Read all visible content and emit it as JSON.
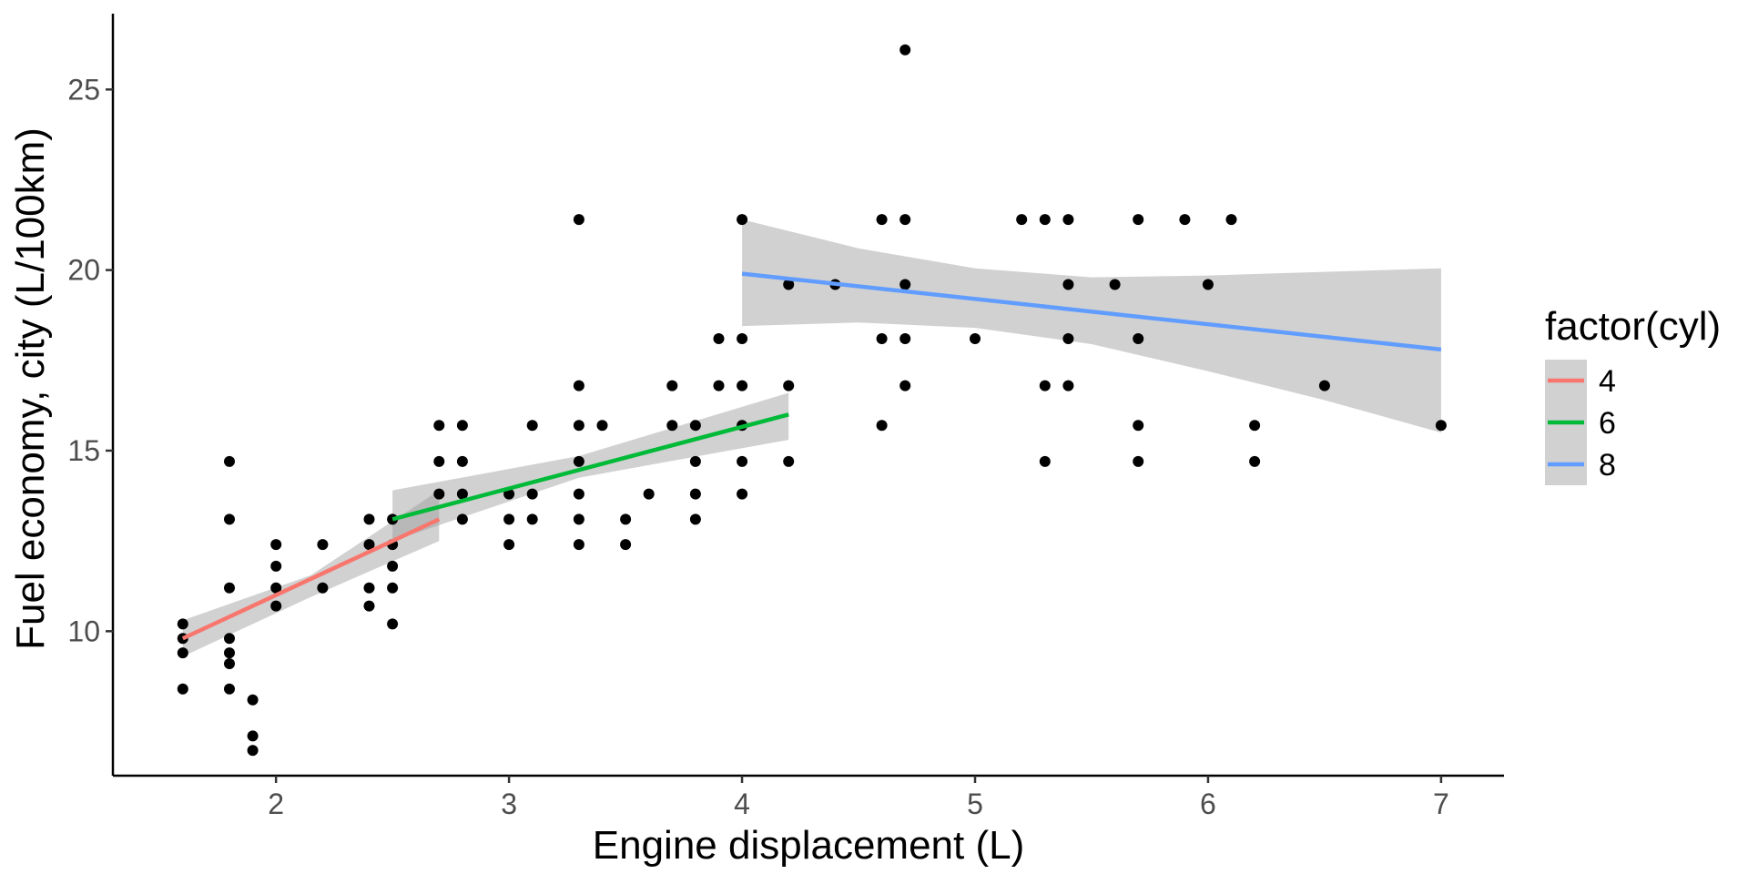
{
  "chart_data": {
    "type": "scatter",
    "xlabel": "Engine displacement (L)",
    "ylabel": "Fuel economy, city (L/100km)",
    "xlim": [
      1.3,
      7.27
    ],
    "ylim": [
      6.0,
      27.1
    ],
    "x_ticks": [
      2,
      3,
      4,
      5,
      6,
      7
    ],
    "y_ticks": [
      10,
      15,
      20,
      25
    ],
    "x_tick_labels": [
      "2",
      "3",
      "4",
      "5",
      "6",
      "7"
    ],
    "y_tick_labels": [
      "10",
      "15",
      "20",
      "25"
    ],
    "grid": false,
    "legend": {
      "title": "factor(cyl)",
      "placement": "right",
      "entries": [
        {
          "label": "4",
          "color": "#F8766D"
        },
        {
          "label": "6",
          "color": "#00BA38"
        },
        {
          "label": "8",
          "color": "#619CFF"
        }
      ]
    },
    "points": [
      [
        1.6,
        10.2
      ],
      [
        1.6,
        9.8
      ],
      [
        1.6,
        9.4
      ],
      [
        1.6,
        8.4
      ],
      [
        1.8,
        14.7
      ],
      [
        1.8,
        13.1
      ],
      [
        1.8,
        11.2
      ],
      [
        1.8,
        9.8
      ],
      [
        1.8,
        9.4
      ],
      [
        1.8,
        9.1
      ],
      [
        1.8,
        8.4
      ],
      [
        1.9,
        8.1
      ],
      [
        1.9,
        7.1
      ],
      [
        1.9,
        6.7
      ],
      [
        2.0,
        12.4
      ],
      [
        2.0,
        11.8
      ],
      [
        2.0,
        11.2
      ],
      [
        2.0,
        10.7
      ],
      [
        2.2,
        12.4
      ],
      [
        2.2,
        11.2
      ],
      [
        2.4,
        13.1
      ],
      [
        2.4,
        12.4
      ],
      [
        2.4,
        11.2
      ],
      [
        2.4,
        10.7
      ],
      [
        2.5,
        13.1
      ],
      [
        2.5,
        12.4
      ],
      [
        2.5,
        11.8
      ],
      [
        2.5,
        11.2
      ],
      [
        2.5,
        10.2
      ],
      [
        2.7,
        15.7
      ],
      [
        2.7,
        14.7
      ],
      [
        2.7,
        13.8
      ],
      [
        2.8,
        15.7
      ],
      [
        2.8,
        14.7
      ],
      [
        2.8,
        13.8
      ],
      [
        2.8,
        13.1
      ],
      [
        3.0,
        13.8
      ],
      [
        3.0,
        13.1
      ],
      [
        3.0,
        12.4
      ],
      [
        3.1,
        15.7
      ],
      [
        3.1,
        13.8
      ],
      [
        3.1,
        13.1
      ],
      [
        3.3,
        21.4
      ],
      [
        3.3,
        16.8
      ],
      [
        3.3,
        15.7
      ],
      [
        3.3,
        14.7
      ],
      [
        3.3,
        13.8
      ],
      [
        3.3,
        13.1
      ],
      [
        3.3,
        12.4
      ],
      [
        3.4,
        15.7
      ],
      [
        3.5,
        13.1
      ],
      [
        3.5,
        12.4
      ],
      [
        3.6,
        13.8
      ],
      [
        3.7,
        16.8
      ],
      [
        3.7,
        15.7
      ],
      [
        3.8,
        15.7
      ],
      [
        3.8,
        14.7
      ],
      [
        3.8,
        13.8
      ],
      [
        3.8,
        13.1
      ],
      [
        3.9,
        18.1
      ],
      [
        3.9,
        16.8
      ],
      [
        4.0,
        21.4
      ],
      [
        4.0,
        18.1
      ],
      [
        4.0,
        16.8
      ],
      [
        4.0,
        15.7
      ],
      [
        4.0,
        14.7
      ],
      [
        4.0,
        13.8
      ],
      [
        4.2,
        19.6
      ],
      [
        4.2,
        16.8
      ],
      [
        4.2,
        14.7
      ],
      [
        4.4,
        19.6
      ],
      [
        4.6,
        21.4
      ],
      [
        4.6,
        18.1
      ],
      [
        4.6,
        15.7
      ],
      [
        4.7,
        26.1
      ],
      [
        4.7,
        21.4
      ],
      [
        4.7,
        19.6
      ],
      [
        4.7,
        18.1
      ],
      [
        4.7,
        16.8
      ],
      [
        5.0,
        18.1
      ],
      [
        5.2,
        21.4
      ],
      [
        5.3,
        21.4
      ],
      [
        5.3,
        16.8
      ],
      [
        5.3,
        14.7
      ],
      [
        5.4,
        21.4
      ],
      [
        5.4,
        19.6
      ],
      [
        5.4,
        18.1
      ],
      [
        5.4,
        16.8
      ],
      [
        5.6,
        19.6
      ],
      [
        5.7,
        21.4
      ],
      [
        5.7,
        18.1
      ],
      [
        5.7,
        15.7
      ],
      [
        5.7,
        14.7
      ],
      [
        5.9,
        21.4
      ],
      [
        6.0,
        19.6
      ],
      [
        6.1,
        21.4
      ],
      [
        6.2,
        15.7
      ],
      [
        6.2,
        14.7
      ],
      [
        6.5,
        16.8
      ],
      [
        7.0,
        15.7
      ]
    ],
    "series": [
      {
        "name": "4",
        "color": "#F8766D",
        "line": [
          [
            1.6,
            9.8
          ],
          [
            2.7,
            13.1
          ]
        ],
        "band_upper": [
          [
            1.6,
            10.3
          ],
          [
            2.15,
            11.55
          ],
          [
            2.7,
            13.9
          ]
        ],
        "band_lower": [
          [
            1.6,
            9.3
          ],
          [
            2.15,
            10.95
          ],
          [
            2.7,
            12.5
          ]
        ]
      },
      {
        "name": "6",
        "color": "#00BA38",
        "line": [
          [
            2.5,
            13.1
          ],
          [
            4.2,
            16.0
          ]
        ],
        "band_upper": [
          [
            2.5,
            13.9
          ],
          [
            3.3,
            14.85
          ],
          [
            4.2,
            16.6
          ]
        ],
        "band_lower": [
          [
            2.5,
            12.5
          ],
          [
            3.3,
            14.25
          ],
          [
            4.2,
            15.3
          ]
        ]
      },
      {
        "name": "8",
        "color": "#619CFF",
        "line": [
          [
            4.0,
            19.9
          ],
          [
            7.0,
            17.8
          ]
        ],
        "band_upper": [
          [
            4.0,
            21.4
          ],
          [
            4.5,
            20.6
          ],
          [
            5.0,
            20.05
          ],
          [
            5.5,
            19.8
          ],
          [
            6.0,
            19.85
          ],
          [
            6.5,
            19.95
          ],
          [
            7.0,
            20.05
          ]
        ],
        "band_lower": [
          [
            4.0,
            18.45
          ],
          [
            4.5,
            18.55
          ],
          [
            5.0,
            18.4
          ],
          [
            5.5,
            17.95
          ],
          [
            6.0,
            17.2
          ],
          [
            6.5,
            16.4
          ],
          [
            7.0,
            15.5
          ]
        ]
      }
    ]
  }
}
